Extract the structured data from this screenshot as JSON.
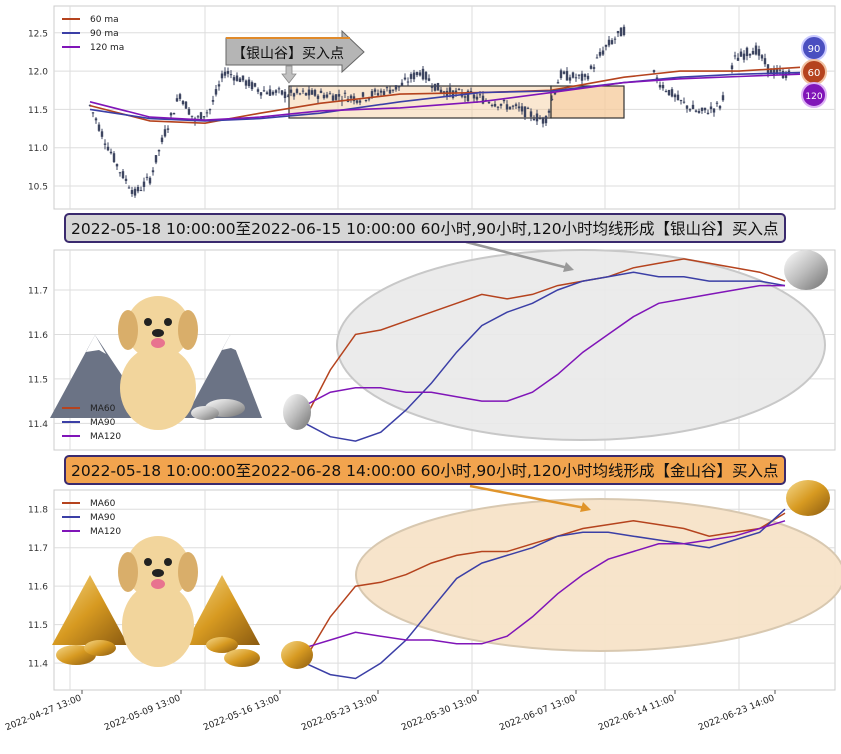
{
  "colors": {
    "ma60": "#b5431e",
    "ma90": "#3b3fa6",
    "ma120": "#8015b8",
    "candle": "#3d4560",
    "grid": "#dddddd",
    "silver_fill": "#e9e9e9",
    "gold_fill": "#f7e3c8",
    "zone": "#f5c99a"
  },
  "top_panel": {
    "legend": [
      "60 ma",
      "90 ma",
      "120 ma"
    ],
    "callout_label": "【银山谷】买入点",
    "badges": [
      "90",
      "60",
      "120"
    ],
    "chart_data": {
      "type": "candlestick",
      "ylim": [
        10.2,
        12.85
      ],
      "yticks": [
        10.5,
        11.0,
        11.5,
        12.0,
        12.5
      ],
      "grid": true,
      "note_series_approx": true
    }
  },
  "banner1": {
    "text": "2022-05-18 10:00:00至2022-06-15 10:00:00 60小时,90小时,120小时均线形成【银山谷】买入点"
  },
  "banner2": {
    "text": "2022-05-18 10:00:00至2022-06-28 14:00:00 60小时,90小时,120小时均线形成【金山谷】买入点"
  },
  "middle_panel": {
    "legend": [
      "MA60",
      "MA90",
      "MA120"
    ],
    "chart_data": {
      "type": "line",
      "ylim": [
        11.34,
        11.79
      ],
      "yticks": [
        11.4,
        11.5,
        11.6,
        11.7
      ],
      "x_range": [
        "2022-05-18 10:00",
        "2022-06-28 14:00"
      ],
      "series": [
        {
          "name": "MA60",
          "values": [
            11.41,
            11.52,
            11.6,
            11.61,
            11.63,
            11.65,
            11.67,
            11.69,
            11.68,
            11.69,
            11.71,
            11.72,
            11.73,
            11.75,
            11.76,
            11.77,
            11.76,
            11.75,
            11.74,
            11.72
          ]
        },
        {
          "name": "MA90",
          "values": [
            11.4,
            11.37,
            11.36,
            11.38,
            11.43,
            11.49,
            11.56,
            11.62,
            11.65,
            11.67,
            11.7,
            11.72,
            11.73,
            11.74,
            11.73,
            11.73,
            11.72,
            11.72,
            11.72,
            11.71
          ]
        },
        {
          "name": "MA120",
          "values": [
            11.44,
            11.47,
            11.48,
            11.48,
            11.47,
            11.47,
            11.46,
            11.45,
            11.45,
            11.47,
            11.51,
            11.56,
            11.6,
            11.64,
            11.67,
            11.68,
            11.69,
            11.7,
            11.71,
            11.71
          ]
        }
      ]
    }
  },
  "bottom_panel": {
    "legend": [
      "MA60",
      "MA90",
      "MA120"
    ],
    "x_tick_labels": [
      "2022-04-27 13:00",
      "2022-05-09 13:00",
      "2022-05-16 13:00",
      "2022-05-23 13:00",
      "2022-05-30 13:00",
      "2022-06-07 13:00",
      "2022-06-14 11:00",
      "2022-06-23 14:00"
    ],
    "chart_data": {
      "type": "line",
      "ylim": [
        11.33,
        11.85
      ],
      "yticks": [
        11.4,
        11.5,
        11.6,
        11.7,
        11.8
      ],
      "x_range": [
        "2022-05-18 10:00",
        "2022-06-28 14:00"
      ],
      "series": [
        {
          "name": "MA60",
          "values": [
            11.41,
            11.52,
            11.6,
            11.61,
            11.63,
            11.66,
            11.68,
            11.69,
            11.69,
            11.71,
            11.73,
            11.75,
            11.76,
            11.77,
            11.76,
            11.75,
            11.73,
            11.74,
            11.75,
            11.79
          ]
        },
        {
          "name": "MA90",
          "values": [
            11.4,
            11.37,
            11.36,
            11.4,
            11.46,
            11.54,
            11.62,
            11.66,
            11.68,
            11.7,
            11.73,
            11.74,
            11.74,
            11.73,
            11.72,
            11.71,
            11.7,
            11.72,
            11.74,
            11.8
          ]
        },
        {
          "name": "MA120",
          "values": [
            11.44,
            11.46,
            11.48,
            11.47,
            11.46,
            11.46,
            11.45,
            11.45,
            11.47,
            11.52,
            11.58,
            11.63,
            11.67,
            11.69,
            11.71,
            11.71,
            11.72,
            11.73,
            11.75,
            11.77
          ]
        }
      ]
    }
  }
}
